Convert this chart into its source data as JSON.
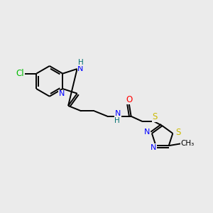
{
  "background_color": "#ebebeb",
  "bond_color": "#000000",
  "atom_colors": {
    "Cl": "#00bb00",
    "N": "#0000ff",
    "O": "#ff0000",
    "S": "#ccbb00",
    "H": "#007070",
    "C": "#000000"
  },
  "figsize": [
    3.0,
    3.0
  ],
  "dpi": 100
}
